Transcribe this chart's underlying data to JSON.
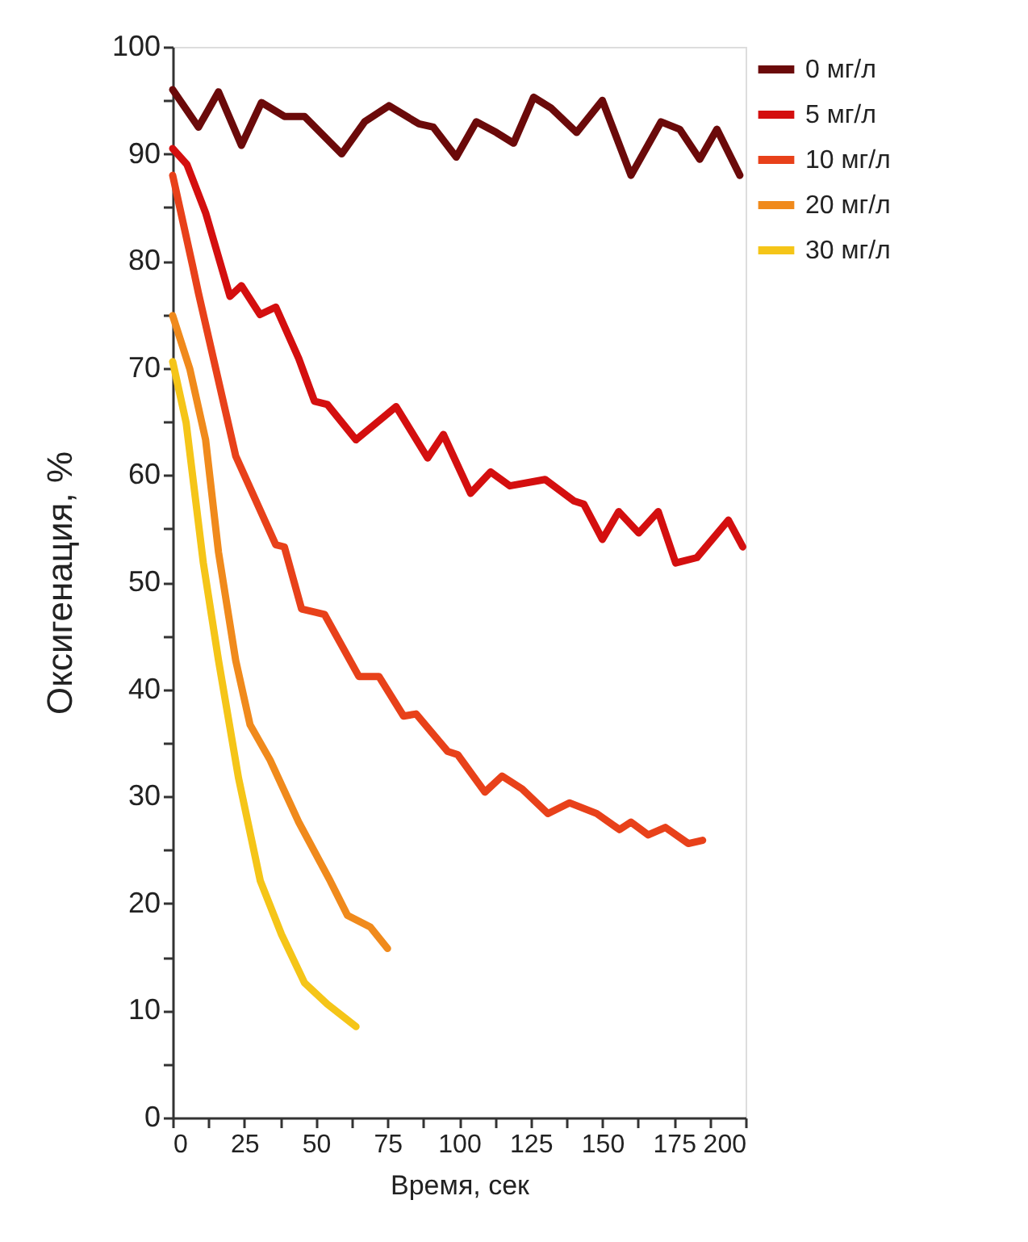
{
  "chart_data": {
    "type": "line",
    "xlabel": "Время, сек",
    "ylabel": "Оксигенация, %",
    "xlim": [
      0,
      200
    ],
    "ylim": [
      0,
      100
    ],
    "xticks": [
      0,
      {
        "value": 12.5,
        "label": null
      },
      25,
      {
        "value": 37.5,
        "label": null
      },
      50,
      {
        "value": 62.5,
        "label": null
      },
      75,
      {
        "value": 87.5,
        "label": null
      },
      100,
      {
        "value": 112.5,
        "label": null
      },
      125,
      {
        "value": 137.5,
        "label": null
      },
      150,
      {
        "value": 162.5,
        "label": null
      },
      175,
      {
        "value": 187.5,
        "label": null
      },
      200
    ],
    "yticks": [
      0,
      {
        "value": 5,
        "label": null
      },
      10,
      {
        "value": 15,
        "label": null
      },
      20,
      {
        "value": 25,
        "label": null
      },
      30,
      {
        "value": 35,
        "label": null
      },
      40,
      {
        "value": 45,
        "label": null
      },
      50,
      {
        "value": 55,
        "label": null
      },
      60,
      {
        "value": 65,
        "label": null
      },
      70,
      {
        "value": 75,
        "label": null
      },
      80,
      {
        "value": 85,
        "label": null
      },
      90,
      {
        "value": 95,
        "label": null
      },
      100
    ],
    "grid": false,
    "legend": "top right",
    "marker": "none",
    "line_style": "solid",
    "series": [
      {
        "name": "0 мг/л",
        "color": "#6b0a0a",
        "x": [
          0,
          9,
          16,
          24,
          31,
          39,
          46,
          59,
          67,
          75.5,
          86,
          91,
          99,
          106,
          113,
          119,
          126,
          132,
          141,
          150,
          160,
          170.5,
          177,
          184,
          190,
          198
        ],
        "values": [
          96,
          92.5,
          95.8,
          90.8,
          94.8,
          93.5,
          93.5,
          90,
          93,
          94.5,
          92.8,
          92.5,
          89.7,
          93,
          92,
          91,
          95.3,
          94.3,
          92,
          95,
          88,
          93,
          92.3,
          89.5,
          92.3,
          88
        ]
      },
      {
        "name": "5 мг/л",
        "color": "#d40f0f",
        "x": [
          0,
          5,
          11.5,
          20,
          24,
          30.5,
          36,
          44,
          49.5,
          54,
          64,
          78,
          89,
          94.5,
          104,
          111,
          117.7,
          130,
          140,
          143.5,
          150,
          155.7,
          162.7,
          169.5,
          175.6,
          183,
          194,
          199
        ],
        "values": [
          90.5,
          89,
          84.5,
          76.7,
          77.7,
          75,
          75.7,
          70.9,
          66.9,
          66.6,
          63.3,
          66.4,
          61.6,
          63.8,
          58.3,
          60.3,
          59,
          59.6,
          57.6,
          57.3,
          54,
          56.6,
          54.6,
          56.6,
          51.8,
          52.3,
          55.8,
          53.3
        ]
      },
      {
        "name": "10 мг/л",
        "color": "#e8411a",
        "x": [
          0,
          7,
          9,
          22,
          36,
          39,
          45,
          53,
          65,
          72,
          80.6,
          85,
          96,
          99.5,
          109,
          115,
          122,
          131,
          138.5,
          148,
          156,
          160,
          166,
          172,
          180,
          185
        ],
        "values": [
          88,
          79.5,
          77,
          61.8,
          53.5,
          53.3,
          47.5,
          47,
          41.2,
          41.2,
          37.5,
          37.7,
          34.2,
          33.9,
          30.4,
          31.9,
          30.7,
          28.4,
          29.4,
          28.4,
          26.9,
          27.6,
          26.4,
          27.1,
          25.6,
          25.9
        ]
      },
      {
        "name": "20 мг/л",
        "color": "#f08a1c",
        "x": [
          0,
          6,
          11.5,
          16,
          22,
          27,
          34,
          44,
          53,
          55,
          61,
          69,
          75
        ],
        "values": [
          74.9,
          69.9,
          63.3,
          52.8,
          42.7,
          36.7,
          33.4,
          27.6,
          23.1,
          22.1,
          18.9,
          17.8,
          15.8
        ]
      },
      {
        "name": "30 мг/л",
        "color": "#f5c518",
        "x": [
          0,
          4.7,
          10.7,
          16,
          23,
          30.6,
          38,
          46,
          54,
          64
        ],
        "values": [
          70.6,
          64.9,
          51.8,
          42.7,
          31.7,
          22.1,
          17.1,
          12.6,
          10.6,
          8.5
        ]
      }
    ]
  }
}
